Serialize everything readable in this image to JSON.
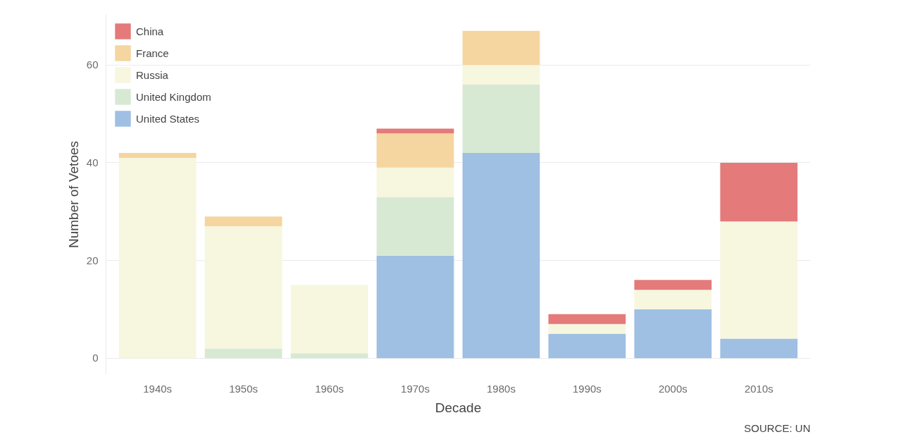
{
  "chart_data": {
    "type": "bar",
    "stacked": true,
    "xlabel": "Decade",
    "ylabel": "Number of Vetoes",
    "categories": [
      "1940s",
      "1950s",
      "1960s",
      "1970s",
      "1980s",
      "1990s",
      "2000s",
      "2010s"
    ],
    "series": [
      {
        "name": "United States",
        "color": "#9fbfe3",
        "values": [
          0,
          0,
          0,
          21,
          42,
          5,
          10,
          4
        ]
      },
      {
        "name": "United Kingdom",
        "color": "#d8e9d3",
        "values": [
          0,
          2,
          1,
          12,
          14,
          0,
          0,
          0
        ]
      },
      {
        "name": "Russia",
        "color": "#f7f6df",
        "values": [
          41,
          25,
          14,
          6,
          4,
          2,
          4,
          24
        ]
      },
      {
        "name": "France",
        "color": "#f5d5a0",
        "values": [
          1,
          2,
          0,
          7,
          7,
          0,
          0,
          0
        ]
      },
      {
        "name": "China",
        "color": "#e47a7a",
        "values": [
          0,
          0,
          0,
          1,
          0,
          2,
          2,
          12
        ]
      }
    ],
    "ylim": [
      -3.35,
      70.35
    ],
    "yticks": [
      0,
      20,
      40,
      60
    ],
    "grid": "y",
    "legend": "top left",
    "annotations": [
      "SOURCE: UN"
    ]
  }
}
